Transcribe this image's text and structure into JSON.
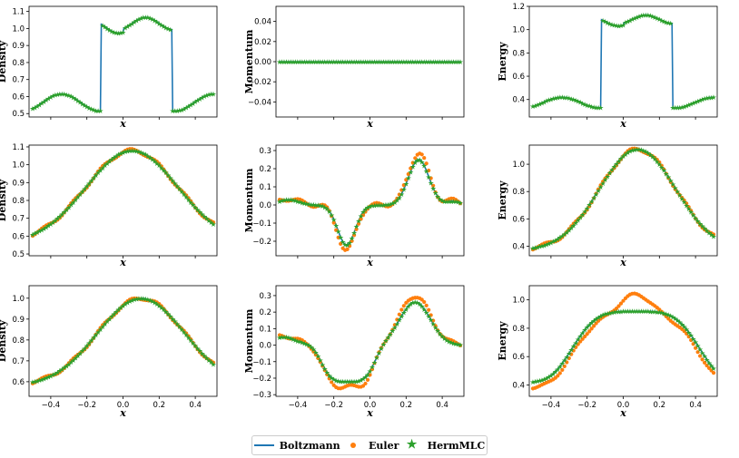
{
  "colors": {
    "boltzmann": "#1f77b4",
    "euler": "#ff7f0e",
    "hermmlc": "#2ca02c"
  },
  "legend": {
    "boltzmann": "Boltzmann",
    "euler": "Euler",
    "hermmlc": "HermMLC"
  },
  "chart_data": [
    {
      "type": "line",
      "title": "",
      "xlabel": "x",
      "ylabel": "Density",
      "xlim": [
        -0.52,
        0.52
      ],
      "ylim": [
        0.48,
        1.13
      ],
      "show_xticks": false,
      "yticks": [
        0.5,
        0.6,
        0.7,
        0.8,
        0.9,
        1.0,
        1.1
      ],
      "ytick_labels": [
        "0.5",
        "0.6",
        "0.7",
        "0.8",
        "0.9",
        "1.0",
        "1.1"
      ],
      "profile": "step",
      "base": 0.566,
      "amp": 0.05,
      "phase": 0.0,
      "hi": 1.06,
      "hiamp": 0.04,
      "series": [
        {
          "name": "Boltzmann"
        },
        {
          "name": "HermMLC"
        }
      ]
    },
    {
      "type": "line",
      "title": "",
      "xlabel": "x",
      "ylabel": "Momentum",
      "xlim": [
        -0.52,
        0.52
      ],
      "ylim": [
        -0.055,
        0.055
      ],
      "show_xticks": false,
      "yticks": [
        -0.04,
        -0.02,
        0.0,
        0.02,
        0.04
      ],
      "ytick_labels": [
        "−0.04",
        "−0.02",
        "0.00",
        "0.02",
        "0.04"
      ],
      "profile": "zero",
      "series": [
        {
          "name": "Boltzmann"
        },
        {
          "name": "HermMLC"
        }
      ]
    },
    {
      "type": "line",
      "title": "",
      "xlabel": "x",
      "ylabel": "Energy",
      "xlim": [
        -0.52,
        0.52
      ],
      "ylim": [
        0.25,
        1.2
      ],
      "show_xticks": false,
      "yticks": [
        0.4,
        0.6,
        0.8,
        1.0,
        1.2
      ],
      "ytick_labels": [
        "0.4",
        "0.6",
        "0.8",
        "1.0",
        "1.2"
      ],
      "profile": "step",
      "base": 0.375,
      "amp": 0.045,
      "phase": 0.0,
      "hi": 1.12,
      "hiamp": 0.04,
      "series": [
        {
          "name": "Boltzmann"
        },
        {
          "name": "HermMLC"
        }
      ]
    },
    {
      "type": "line",
      "title": "",
      "xlabel": "x",
      "ylabel": "Density",
      "xlim": [
        -0.52,
        0.52
      ],
      "ylim": [
        0.49,
        1.11
      ],
      "show_xticks": false,
      "yticks": [
        0.5,
        0.6,
        0.7,
        0.8,
        0.9,
        1.0,
        1.1
      ],
      "ytick_labels": [
        "0.5",
        "0.6",
        "0.7",
        "0.8",
        "0.9",
        "1.0",
        "1.1"
      ],
      "profile": "bump",
      "lo": 0.56,
      "hi": 1.08,
      "center": 0.05,
      "width": 0.36,
      "series": [
        {
          "name": "Boltzmann"
        },
        {
          "name": "Euler"
        },
        {
          "name": "HermMLC"
        }
      ]
    },
    {
      "type": "line",
      "title": "",
      "xlabel": "x",
      "ylabel": "Momentum",
      "xlim": [
        -0.52,
        0.52
      ],
      "ylim": [
        -0.28,
        0.33
      ],
      "show_xticks": false,
      "yticks": [
        -0.2,
        -0.1,
        0.0,
        0.1,
        0.2,
        0.3
      ],
      "ytick_labels": [
        "−0.2",
        "−0.1",
        "0.0",
        "0.1",
        "0.2",
        "0.3"
      ],
      "profile": "mom",
      "neg": -0.22,
      "pos": 0.25,
      "series": [
        {
          "name": "Boltzmann"
        },
        {
          "name": "Euler"
        },
        {
          "name": "HermMLC"
        }
      ]
    },
    {
      "type": "line",
      "title": "",
      "xlabel": "x",
      "ylabel": "Energy",
      "xlim": [
        -0.52,
        0.52
      ],
      "ylim": [
        0.33,
        1.14
      ],
      "show_xticks": false,
      "yticks": [
        0.4,
        0.6,
        0.8,
        1.0
      ],
      "ytick_labels": [
        "0.4",
        "0.6",
        "0.8",
        "1.0"
      ],
      "profile": "bump",
      "lo": 0.37,
      "hi": 1.11,
      "center": 0.08,
      "width": 0.3,
      "series": [
        {
          "name": "Boltzmann"
        },
        {
          "name": "Euler"
        },
        {
          "name": "HermMLC"
        }
      ]
    },
    {
      "type": "line",
      "title": "",
      "xlabel": "x",
      "ylabel": "Density",
      "xlim": [
        -0.52,
        0.52
      ],
      "ylim": [
        0.53,
        1.06
      ],
      "show_xticks": true,
      "xticks": [
        -0.4,
        -0.2,
        0.0,
        0.2,
        0.4
      ],
      "xtick_labels": [
        "−0.4",
        "−0.2",
        "0.0",
        "0.2",
        "0.4"
      ],
      "yticks": [
        0.6,
        0.7,
        0.8,
        0.9,
        1.0
      ],
      "ytick_labels": [
        "0.6",
        "0.7",
        "0.8",
        "0.9",
        "1.0"
      ],
      "profile": "bump",
      "lo": 0.58,
      "hi": 1.0,
      "center": 0.1,
      "width": 0.34,
      "series": [
        {
          "name": "Boltzmann"
        },
        {
          "name": "Euler"
        },
        {
          "name": "HermMLC"
        }
      ]
    },
    {
      "type": "line",
      "title": "",
      "xlabel": "x",
      "ylabel": "Momentum",
      "xlim": [
        -0.52,
        0.52
      ],
      "ylim": [
        -0.31,
        0.36
      ],
      "show_xticks": true,
      "xticks": [
        -0.4,
        -0.2,
        0.0,
        0.2,
        0.4
      ],
      "xtick_labels": [
        "−0.4",
        "−0.2",
        "0.0",
        "0.2",
        "0.4"
      ],
      "yticks": [
        -0.3,
        -0.2,
        -0.1,
        0.0,
        0.1,
        0.2,
        0.3
      ],
      "ytick_labels": [
        "−0.3",
        "−0.2",
        "−0.1",
        "0.0",
        "0.1",
        "0.2",
        "0.3"
      ],
      "profile": "mom2",
      "neg": -0.22,
      "pos": 0.26,
      "series": [
        {
          "name": "Boltzmann"
        },
        {
          "name": "Euler"
        },
        {
          "name": "HermMLC"
        }
      ]
    },
    {
      "type": "line",
      "title": "",
      "xlabel": "x",
      "ylabel": "Energy",
      "xlim": [
        -0.52,
        0.52
      ],
      "ylim": [
        0.32,
        1.1
      ],
      "show_xticks": true,
      "xticks": [
        -0.4,
        -0.2,
        0.0,
        0.2,
        0.4
      ],
      "xtick_labels": [
        "−0.4",
        "−0.2",
        "0.0",
        "0.2",
        "0.4"
      ],
      "yticks": [
        0.4,
        0.6,
        0.8,
        1.0
      ],
      "ytick_labels": [
        "0.4",
        "0.6",
        "0.8",
        "1.0"
      ],
      "profile": "flat",
      "lo": 0.42,
      "hi": 0.92,
      "center": 0.07,
      "width": 0.38,
      "series": [
        {
          "name": "Boltzmann"
        },
        {
          "name": "Euler"
        },
        {
          "name": "HermMLC"
        }
      ]
    }
  ]
}
